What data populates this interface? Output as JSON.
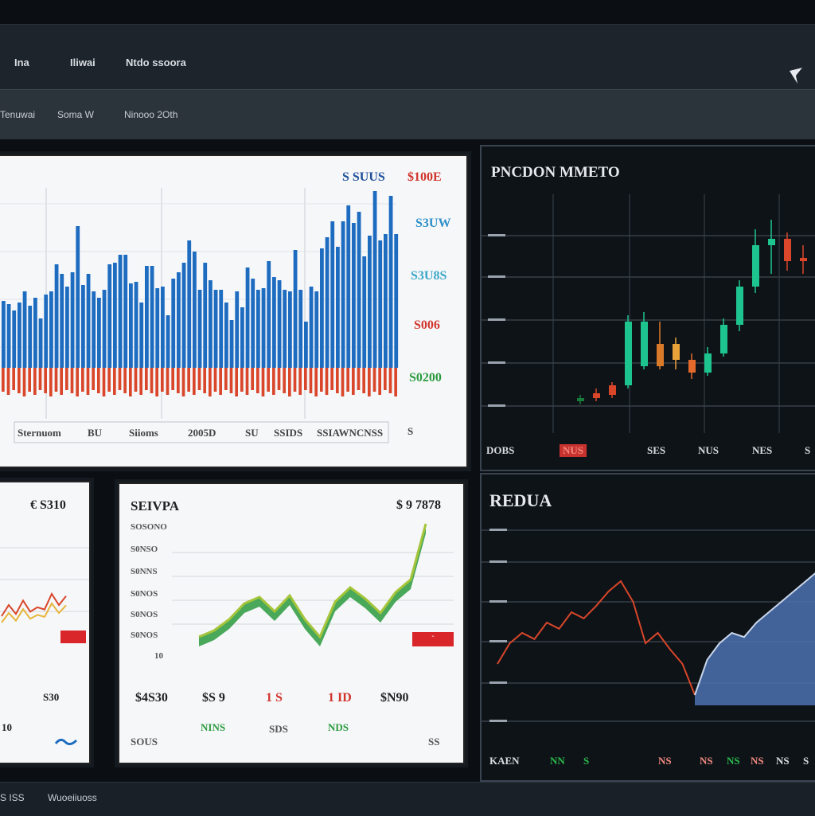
{
  "topnav": {
    "items": [
      "Ina",
      "Iliwai",
      "Ntdo ssoora"
    ]
  },
  "subnav": {
    "items": [
      "Tenuwai",
      "Soma W",
      "Ninooo 2Oth"
    ]
  },
  "main_chart": {
    "legend_blue": "S SUUS",
    "legend_red": "$100E",
    "right_labels": [
      {
        "text": "S3UW",
        "color": "#2d8fc9"
      },
      {
        "text": "S3U8S",
        "color": "#3aa7c7"
      },
      {
        "text": "S006",
        "color": "#d0342c"
      },
      {
        "text": "S0200",
        "color": "#2a9a3e"
      }
    ],
    "x_labels": [
      "Sternuom",
      "BU",
      "Siioms",
      "2005D",
      "SU",
      "SSIDS",
      "SSIAWNCNSS"
    ],
    "corner": "S",
    "chart_data": {
      "type": "bar",
      "series": [
        {
          "name": "S SUUS",
          "color": "#1d6cc0",
          "values": [
            84,
            80,
            72,
            82,
            96,
            78,
            88,
            62,
            92,
            96,
            130,
            118,
            102,
            120,
            178,
            104,
            118,
            96,
            88,
            98,
            130,
            132,
            142,
            142,
            106,
            108,
            82,
            128,
            128,
            100,
            102,
            66,
            112,
            120,
            132,
            160,
            146,
            98,
            132,
            110,
            98,
            98,
            82,
            60,
            96,
            76,
            126,
            112,
            98,
            100,
            134,
            114,
            110,
            98,
            96,
            148,
            98,
            58,
            102,
            96,
            150,
            164,
            184,
            152,
            184,
            204,
            182,
            196,
            140,
            166,
            222,
            160,
            168,
            216,
            168
          ]
        },
        {
          "name": "$100E",
          "color": "#d9462a",
          "values": [
            30,
            34,
            28,
            32,
            36,
            30,
            34,
            28,
            32,
            36,
            30,
            34,
            28,
            32,
            36,
            30,
            34,
            28,
            32,
            36,
            30,
            34,
            28,
            32,
            36,
            30,
            34,
            28,
            32,
            36,
            30,
            34,
            28,
            32,
            36,
            30,
            34,
            28,
            32,
            36,
            30,
            34,
            28,
            32,
            36,
            30,
            34,
            28,
            32,
            36,
            30,
            34,
            28,
            32,
            36,
            30,
            34,
            28,
            32,
            36,
            30,
            34,
            28,
            32,
            36,
            30,
            34,
            28,
            32,
            36,
            30,
            34,
            28,
            32,
            36
          ]
        }
      ]
    }
  },
  "candle_panel": {
    "title": "PNCDON MMETO",
    "y_labels": [
      "",
      "",
      "",
      "",
      ""
    ],
    "x_labels": [
      {
        "text": "DOBS",
        "color": "#d9dde2"
      },
      {
        "text": "NUS",
        "color": "#f08a80"
      },
      {
        "text": "SES",
        "color": "#d9dde2"
      },
      {
        "text": "NUS",
        "color": "#d9dde2"
      },
      {
        "text": "NES",
        "color": "#d9dde2"
      },
      {
        "text": "S",
        "color": "#d9dde2"
      }
    ],
    "chart_data": {
      "type": "candlestick",
      "candles": [
        {
          "o": 10,
          "c": 12,
          "h": 14,
          "l": 8,
          "color": "#1a7a3c"
        },
        {
          "o": 12,
          "c": 15,
          "h": 18,
          "l": 10,
          "color": "#d9462a"
        },
        {
          "o": 14,
          "c": 20,
          "h": 22,
          "l": 12,
          "color": "#d9462a"
        },
        {
          "o": 20,
          "c": 60,
          "h": 64,
          "l": 18,
          "color": "#1ec48e"
        },
        {
          "o": 60,
          "c": 32,
          "h": 66,
          "l": 30,
          "color": "#1ec48e"
        },
        {
          "o": 32,
          "c": 46,
          "h": 60,
          "l": 30,
          "color": "#d97a2a"
        },
        {
          "o": 46,
          "c": 36,
          "h": 50,
          "l": 30,
          "color": "#e8a23a"
        },
        {
          "o": 36,
          "c": 28,
          "h": 40,
          "l": 24,
          "color": "#e36a2a"
        },
        {
          "o": 28,
          "c": 40,
          "h": 44,
          "l": 26,
          "color": "#1ec48e"
        },
        {
          "o": 40,
          "c": 58,
          "h": 62,
          "l": 38,
          "color": "#1ec48e"
        },
        {
          "o": 58,
          "c": 82,
          "h": 86,
          "l": 54,
          "color": "#1ec48e"
        },
        {
          "o": 82,
          "c": 108,
          "h": 118,
          "l": 78,
          "color": "#1ec48e"
        },
        {
          "o": 108,
          "c": 112,
          "h": 124,
          "l": 90,
          "color": "#1ec48e"
        },
        {
          "o": 112,
          "c": 98,
          "h": 116,
          "l": 92,
          "color": "#d9462a"
        },
        {
          "o": 98,
          "c": 100,
          "h": 108,
          "l": 90,
          "color": "#d9462a"
        },
        {
          "o": 100,
          "c": 88,
          "h": 104,
          "l": 84,
          "color": "#e36a2a"
        }
      ]
    }
  },
  "panel_small_left": {
    "value": "€ S310",
    "bottom_val": "S30",
    "foot_left": "10",
    "chart_data": {
      "type": "line",
      "x": [
        0,
        1,
        2,
        3,
        4,
        5,
        6,
        7,
        8,
        9
      ],
      "values": [
        20,
        30,
        22,
        34,
        24,
        28,
        26,
        40,
        30,
        38
      ]
    }
  },
  "panel_mid": {
    "title": "SEIVPA",
    "value": "$ 9 7878",
    "y_labels": [
      "SOSONO",
      "S0NSO",
      "S0NNS",
      "S0NOS",
      "S0NOS",
      "S0NOS",
      "S0NOS"
    ],
    "y_tail": "10",
    "badge": "-",
    "stats": [
      {
        "text": "$4S30",
        "color": "#222"
      },
      {
        "text": "$S 9",
        "color": "#222"
      },
      {
        "text": "1 S",
        "color": "#d0342c"
      },
      {
        "text": "1 ID",
        "color": "#d0342c"
      },
      {
        "text": "$N90",
        "color": "#222"
      }
    ],
    "foot": [
      {
        "text": "SOUS",
        "color": "#555"
      },
      {
        "text": "NINS",
        "color": "#2a9a3e"
      },
      {
        "text": "SDS",
        "color": "#555"
      },
      {
        "text": "NDS",
        "color": "#2a9a3e"
      },
      {
        "text": "SS",
        "color": "#555"
      }
    ],
    "chart_data": {
      "type": "line",
      "x": [
        0,
        1,
        2,
        3,
        4,
        5,
        6,
        7,
        8,
        9,
        10,
        11,
        12,
        13,
        14,
        15
      ],
      "values": [
        8,
        16,
        30,
        50,
        58,
        40,
        60,
        30,
        8,
        52,
        70,
        56,
        38,
        64,
        80,
        150
      ]
    }
  },
  "panel_bottom_right": {
    "title": "REDUA",
    "x_labels": [
      {
        "text": "KAEN",
        "color": "#d9dde2"
      },
      {
        "text": "NN",
        "color": "#2ab84a"
      },
      {
        "text": "S",
        "color": "#2ab84a"
      },
      {
        "text": "NS",
        "color": "#f08a80"
      },
      {
        "text": "NS",
        "color": "#f08a80"
      },
      {
        "text": "NS",
        "color": "#2ab84a"
      },
      {
        "text": "NS",
        "color": "#f08a80"
      },
      {
        "text": "NS",
        "color": "#d9dde2"
      },
      {
        "text": "S",
        "color": "#d9dde2"
      }
    ],
    "chart_data": {
      "type": "area",
      "x": [
        0,
        1,
        2,
        3,
        4,
        5,
        6,
        7,
        8,
        9,
        10,
        11,
        12,
        13,
        14,
        15,
        16,
        17,
        18,
        19,
        20,
        21,
        22,
        23,
        24,
        25,
        26
      ],
      "values": [
        40,
        60,
        70,
        64,
        80,
        74,
        90,
        84,
        96,
        110,
        120,
        100,
        60,
        70,
        54,
        40,
        10,
        44,
        60,
        70,
        66,
        80,
        90,
        100,
        110,
        120,
        130
      ]
    }
  },
  "footer": {
    "items": [
      "S ISS",
      "Wuoeiiuoss"
    ]
  }
}
